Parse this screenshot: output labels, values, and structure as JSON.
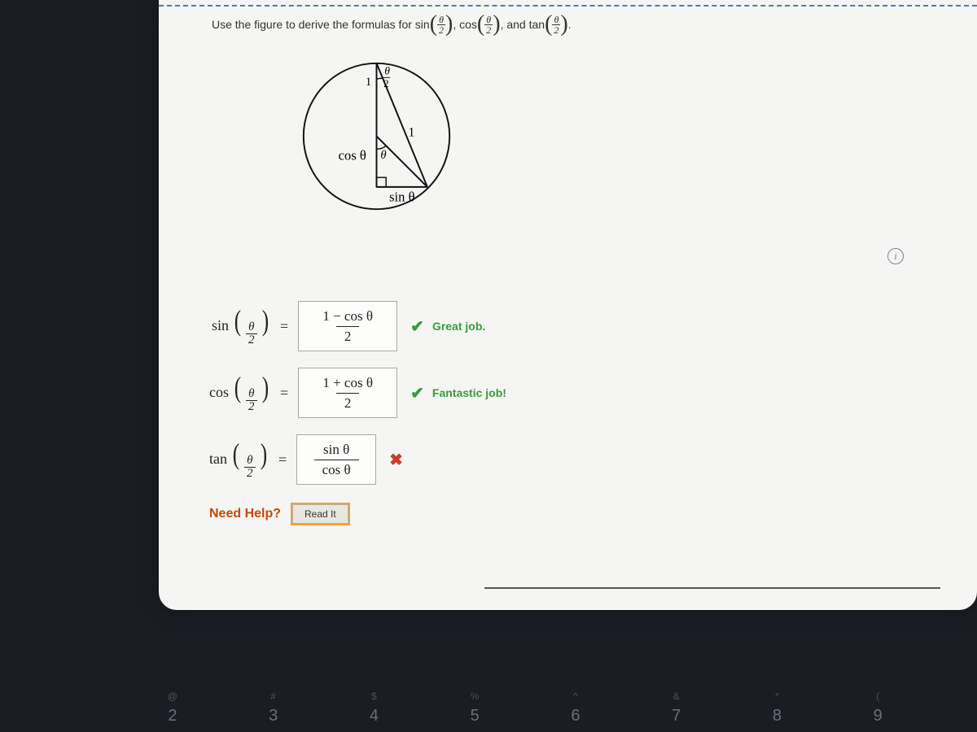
{
  "prompt": {
    "text_before": "Use the figure to derive the formulas for sin",
    "frac": {
      "num": "θ",
      "den": "2"
    },
    "sep1": ", cos",
    "sep2": ", and tan",
    "period": "."
  },
  "figure": {
    "top_label_num": "θ",
    "top_label_den": "2",
    "hyp_label": "1",
    "inner_hyp_label": "1",
    "left_label": "cos θ",
    "center_label": "θ",
    "bottom_label": "sin θ"
  },
  "answers": {
    "row1": {
      "lhs_fn": "sin",
      "lhs_num": "θ",
      "lhs_den": "2",
      "ans_num": "1 − cos  θ",
      "ans_den": "2",
      "status": "ok",
      "status_text": "Great job."
    },
    "row2": {
      "lhs_fn": "cos",
      "lhs_num": "θ",
      "lhs_den": "2",
      "ans_num": "1 + cos  θ",
      "ans_den": "2",
      "status": "ok",
      "status_text": "Fantastic job!"
    },
    "row3": {
      "lhs_fn": "tan",
      "lhs_num": "θ",
      "lhs_den": "2",
      "ans_num": "sin  θ",
      "ans_den": "cos  θ",
      "status": "bad",
      "status_text": ""
    }
  },
  "help": {
    "label": "Need Help?",
    "button": "Read It"
  },
  "info_icon": "i",
  "marks": {
    "ok": "✔",
    "bad": "✖"
  },
  "keys": [
    {
      "sym": "@",
      "num": "2"
    },
    {
      "sym": "#",
      "num": "3"
    },
    {
      "sym": "$",
      "num": "4"
    },
    {
      "sym": "%",
      "num": "5"
    },
    {
      "sym": "^",
      "num": "6"
    },
    {
      "sym": "&",
      "num": "7"
    },
    {
      "sym": "*",
      "num": "8"
    },
    {
      "sym": "(",
      "num": "9"
    }
  ]
}
